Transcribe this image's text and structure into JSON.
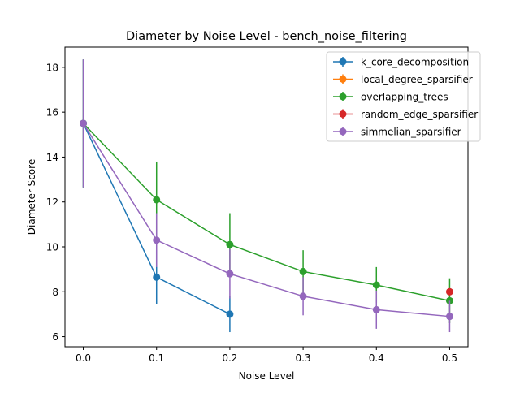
{
  "chart_data": {
    "type": "line",
    "title": "Diameter by Noise Level - bench_noise_filtering",
    "xlabel": "Noise Level",
    "ylabel": "Diameter Score",
    "xlim": [
      -0.025,
      0.525
    ],
    "ylim": [
      5.55,
      18.9
    ],
    "xticks": [
      0.0,
      0.1,
      0.2,
      0.3,
      0.4,
      0.5
    ],
    "xtick_labels": [
      "0.0",
      "0.1",
      "0.2",
      "0.3",
      "0.4",
      "0.5"
    ],
    "yticks": [
      6,
      8,
      10,
      12,
      14,
      16,
      18
    ],
    "ytick_labels": [
      "6",
      "8",
      "10",
      "12",
      "14",
      "16",
      "18"
    ],
    "grid": false,
    "legend_position": "top-right",
    "series": [
      {
        "name": "k_core_decomposition",
        "color": "#1f77b4",
        "x": [
          0.0,
          0.1,
          0.2
        ],
        "y": [
          15.5,
          8.65,
          7.0
        ],
        "err": [
          2.85,
          1.2,
          0.8
        ]
      },
      {
        "name": "local_degree_sparsifier",
        "color": "#ff7f0e",
        "x": [],
        "y": [],
        "err": []
      },
      {
        "name": "overlapping_trees",
        "color": "#2ca02c",
        "x": [
          0.0,
          0.1,
          0.2,
          0.3,
          0.4,
          0.5
        ],
        "y": [
          15.5,
          12.1,
          10.1,
          8.9,
          8.3,
          7.6
        ],
        "err": [
          2.85,
          1.7,
          1.4,
          0.95,
          0.8,
          1.0
        ]
      },
      {
        "name": "random_edge_sparsifier",
        "color": "#d62728",
        "x": [
          0.5
        ],
        "y": [
          8.0
        ],
        "err": [
          0.0
        ]
      },
      {
        "name": "simmelian_sparsifier",
        "color": "#9467bd",
        "x": [
          0.0,
          0.1,
          0.2,
          0.3,
          0.4,
          0.5
        ],
        "y": [
          15.5,
          10.3,
          8.8,
          7.8,
          7.2,
          6.9
        ],
        "err": [
          2.85,
          1.2,
          1.1,
          0.85,
          0.85,
          0.7
        ]
      }
    ]
  }
}
